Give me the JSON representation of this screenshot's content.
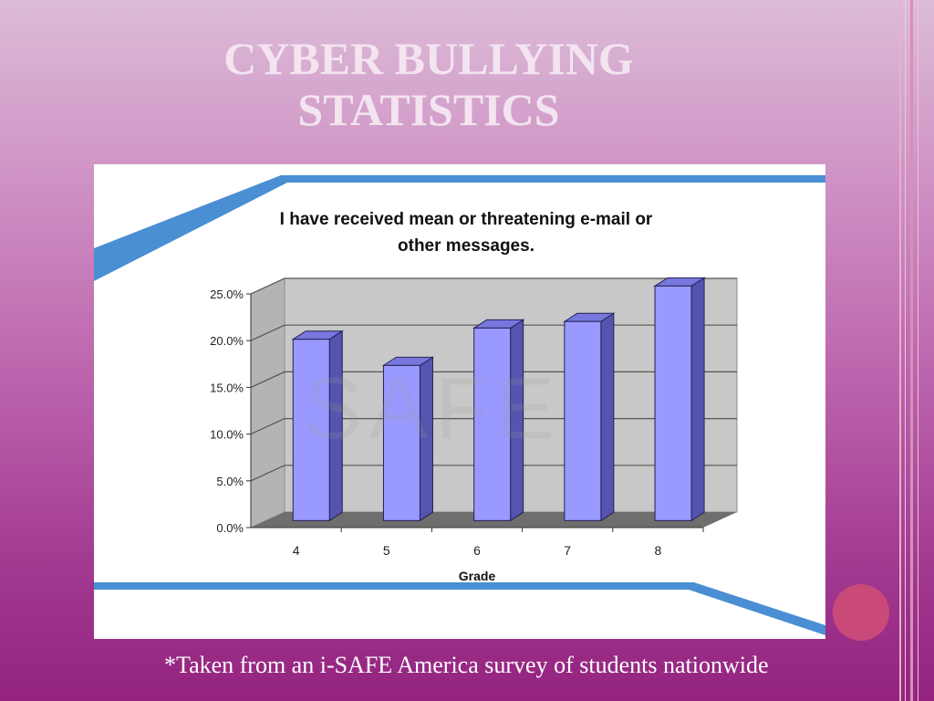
{
  "slide": {
    "title_line1": "CYBER BULLYING",
    "title_line2": "STATISTICS",
    "footnote": "*Taken from an i-SAFE America survey of students nationwide",
    "colors": {
      "title": "#f3e4f0",
      "accent_band": "#4a8ed3",
      "bar_front": "#9999ff",
      "bar_side": "#5555b0",
      "bar_top": "#7777dd",
      "wall": "#c8c8c8",
      "floor": "#6e6e6e",
      "circle": "#c94a79"
    },
    "watermark_text": "SAFE"
  },
  "chart_data": {
    "type": "bar",
    "title_line1": "I have received mean or threatening e-mail or",
    "title_line2": "other messages.",
    "xlabel": "Grade",
    "ylabel": "",
    "categories": [
      "4",
      "5",
      "6",
      "7",
      "8"
    ],
    "values": [
      19.4,
      16.6,
      20.6,
      21.3,
      25.1
    ],
    "ylim": [
      0,
      25
    ],
    "ytick_labels": [
      "0.0%",
      "5.0%",
      "10.0%",
      "15.0%",
      "20.0%",
      "25.0%"
    ],
    "grid": true,
    "style": "3d-column"
  }
}
